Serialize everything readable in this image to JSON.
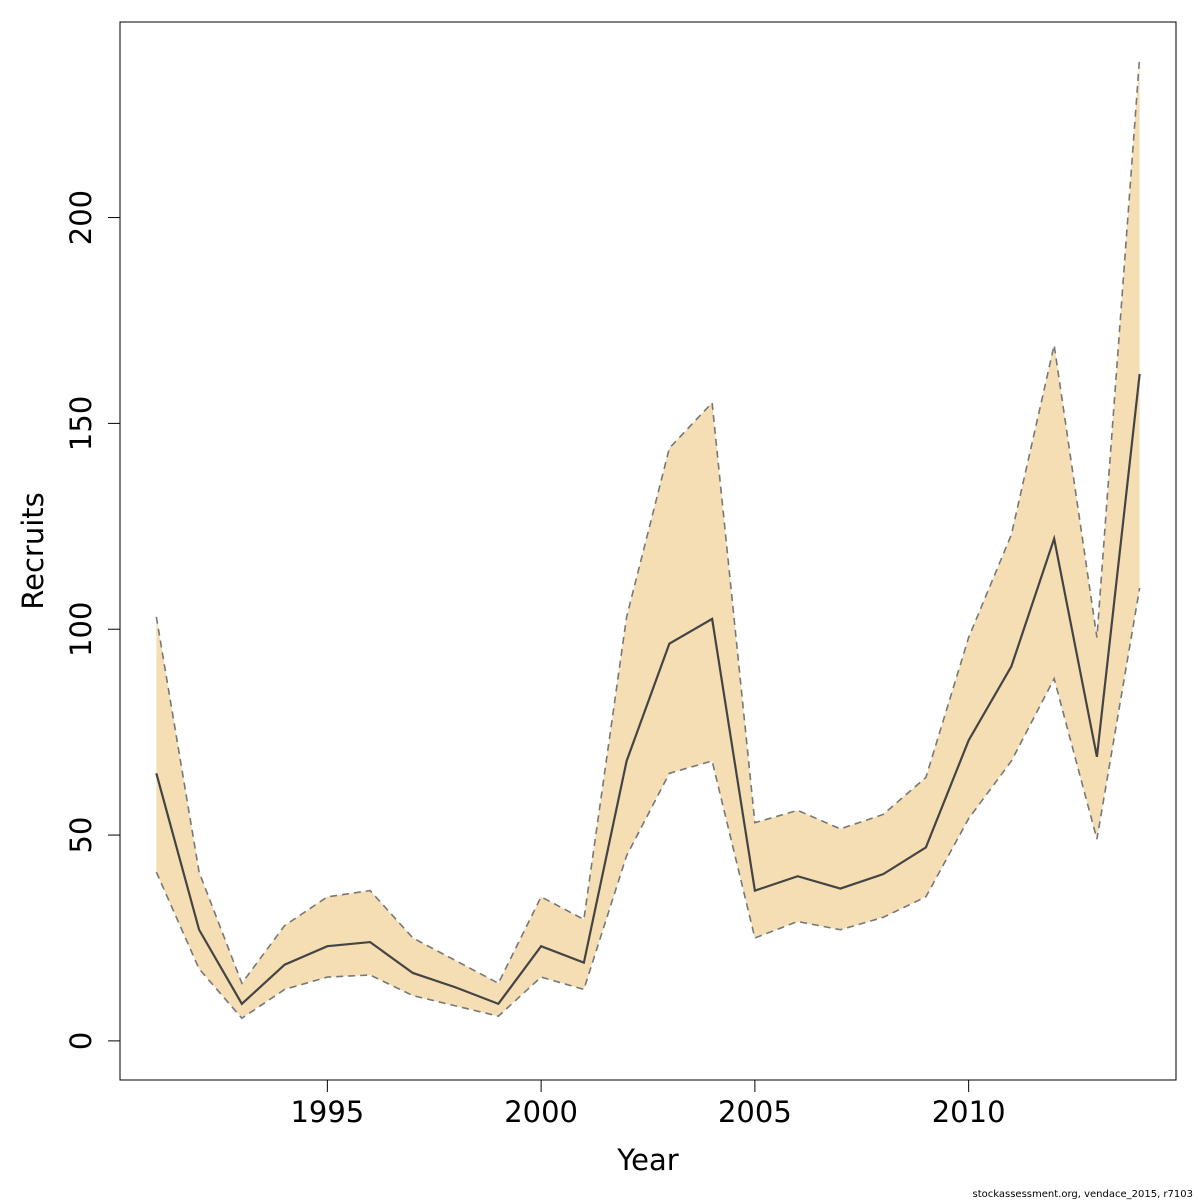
{
  "chart_data": {
    "type": "line",
    "xlabel": "Year",
    "ylabel": "Recruits",
    "xlim": [
      1990.15,
      2014.85
    ],
    "ylim": [
      -9.5,
      247.5
    ],
    "x_ticks": [
      1995,
      2000,
      2005,
      2010
    ],
    "y_ticks": [
      0,
      50,
      100,
      150,
      200
    ],
    "grid": false,
    "legend": "none",
    "x": [
      1991,
      1992,
      1993,
      1994,
      1995,
      1996,
      1997,
      1998,
      1999,
      2000,
      2001,
      2002,
      2003,
      2004,
      2005,
      2006,
      2007,
      2008,
      2009,
      2010,
      2011,
      2012,
      2013,
      2014
    ],
    "series": [
      {
        "role": "estimate",
        "values": [
          65,
          27,
          9,
          18.5,
          23,
          24,
          16.5,
          13,
          9,
          23,
          19,
          68,
          96.5,
          102.5,
          36.5,
          40,
          37,
          40.5,
          47,
          73,
          91,
          122,
          69,
          162
        ]
      },
      {
        "role": "upper",
        "values": [
          103,
          41,
          14,
          28,
          35,
          36.5,
          25,
          19.5,
          14,
          35,
          29.5,
          103,
          144,
          155,
          53,
          56,
          51.5,
          55,
          64,
          98,
          123,
          169,
          98,
          239
        ]
      },
      {
        "role": "lower",
        "values": [
          41,
          17.5,
          5.5,
          12.5,
          15.5,
          16,
          11,
          8.5,
          6,
          15.5,
          12.5,
          45,
          65,
          68,
          25,
          29,
          27,
          30,
          35,
          54,
          68,
          88,
          49,
          110
        ]
      }
    ],
    "colors": {
      "band": "#f5deb3",
      "estimate": "#444444",
      "bounds": "#777777",
      "frame": "#000000"
    }
  },
  "credit": "stockassessment.org, vendace_2015, r7103"
}
